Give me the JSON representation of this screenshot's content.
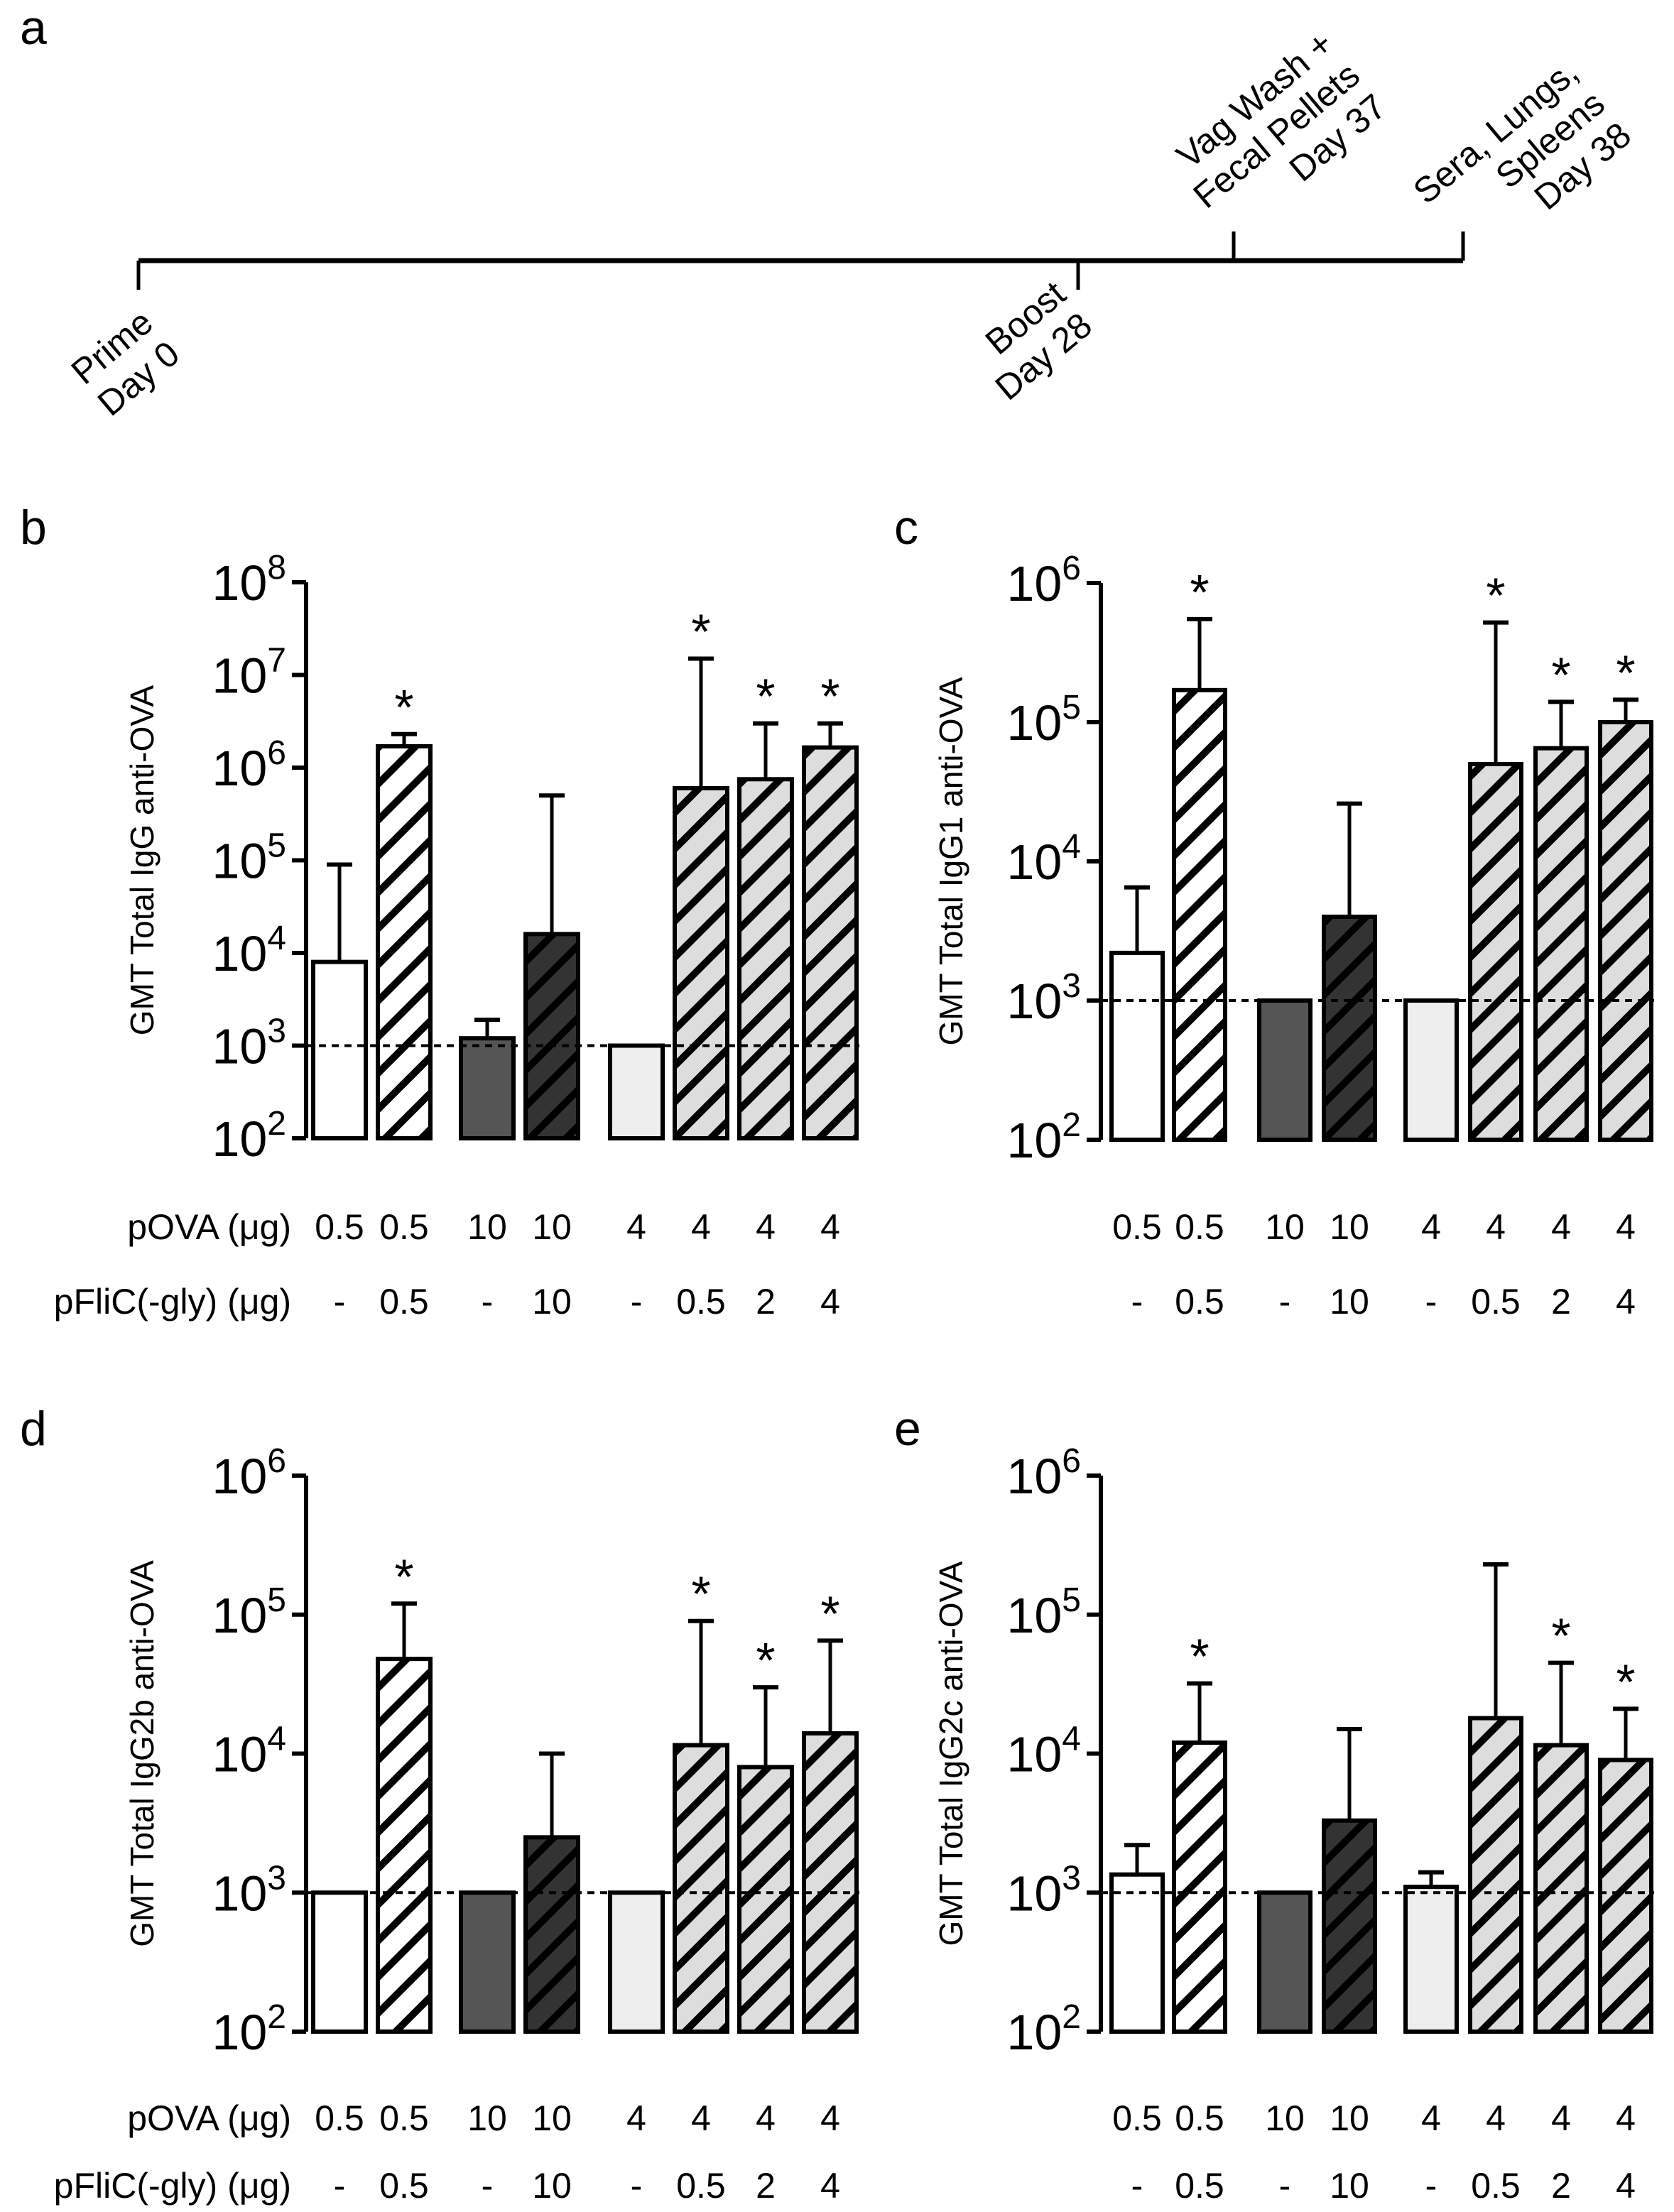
{
  "timeline": {
    "label": "a",
    "events": [
      {
        "lines": [
          "Prime",
          "Day 0"
        ],
        "day": 0
      },
      {
        "lines": [
          "Boost",
          "Day 28"
        ],
        "day": 28
      },
      {
        "lines": [
          "Vag Wash +",
          "Fecal Pellets",
          "Day 37"
        ],
        "day": 37
      },
      {
        "lines": [
          "Sera, Lungs,",
          "Spleens",
          "Day 38"
        ],
        "day": 38
      }
    ]
  },
  "row_labels": {
    "povA": "pOVA (μg)",
    "pflic": "pFliC(-gly) (μg)"
  },
  "chart_data": [
    {
      "type": "bar",
      "panel": "b",
      "ylabel": "GMT Total IgG anti-OVA",
      "yscale": "log",
      "ylim": [
        100,
        100000000
      ],
      "yticks": [
        "10^2",
        "10^3",
        "10^4",
        "10^5",
        "10^6",
        "10^7",
        "10^8"
      ],
      "detection_limit": 1000,
      "povA": [
        "0.5",
        "0.5",
        "10",
        "10",
        "4",
        "4",
        "4",
        "4"
      ],
      "pflic": [
        "-",
        "0.5",
        "-",
        "10",
        "-",
        "0.5",
        "2",
        "4"
      ],
      "show_row_labels": true,
      "values": [
        8000,
        1700000,
        1200,
        16000,
        1000,
        600000,
        750000,
        1650000
      ],
      "error_upper": [
        90000,
        2300000,
        1900,
        500000,
        null,
        15000000,
        3000000,
        3000000
      ],
      "significant": [
        false,
        true,
        false,
        false,
        false,
        true,
        true,
        true
      ]
    },
    {
      "type": "bar",
      "panel": "c",
      "ylabel": "GMT Total IgG1 anti-OVA",
      "yscale": "log",
      "ylim": [
        100,
        1000000
      ],
      "yticks": [
        "10^2",
        "10^3",
        "10^4",
        "10^5",
        "10^6"
      ],
      "detection_limit": 1000,
      "povA": [
        "0.5",
        "0.5",
        "10",
        "10",
        "4",
        "4",
        "4",
        "4"
      ],
      "pflic": [
        "-",
        "0.5",
        "-",
        "10",
        "-",
        "0.5",
        "2",
        "4"
      ],
      "show_row_labels": false,
      "values": [
        2200,
        170000,
        1000,
        4000,
        1000,
        50000,
        65000,
        100000
      ],
      "error_upper": [
        6500,
        550000,
        null,
        26000,
        null,
        520000,
        140000,
        145000
      ],
      "significant": [
        false,
        true,
        false,
        false,
        false,
        true,
        true,
        true
      ]
    },
    {
      "type": "bar",
      "panel": "d",
      "ylabel": "GMT Total IgG2b anti-OVA",
      "yscale": "log",
      "ylim": [
        100,
        1000000
      ],
      "yticks": [
        "10^2",
        "10^3",
        "10^4",
        "10^5",
        "10^6"
      ],
      "detection_limit": 1000,
      "povA": [
        "0.5",
        "0.5",
        "10",
        "10",
        "4",
        "4",
        "4",
        "4"
      ],
      "pflic": [
        "-",
        "0.5",
        "-",
        "10",
        "-",
        "0.5",
        "2",
        "4"
      ],
      "show_row_labels": true,
      "values": [
        1000,
        48000,
        1000,
        2500,
        1000,
        11500,
        8000,
        14000
      ],
      "error_upper": [
        null,
        120000,
        null,
        10000,
        null,
        90000,
        30000,
        65000
      ],
      "significant": [
        false,
        true,
        false,
        false,
        false,
        true,
        true,
        true
      ]
    },
    {
      "type": "bar",
      "panel": "e",
      "ylabel": "GMT Total IgG2c anti-OVA",
      "yscale": "log",
      "ylim": [
        100,
        1000000
      ],
      "yticks": [
        "10^2",
        "10^3",
        "10^4",
        "10^5",
        "10^6"
      ],
      "detection_limit": 1000,
      "povA": [
        "0.5",
        "0.5",
        "10",
        "10",
        "4",
        "4",
        "4",
        "4"
      ],
      "pflic": [
        "-",
        "0.5",
        "-",
        "10",
        "-",
        "0.5",
        "2",
        "4"
      ],
      "show_row_labels": false,
      "values": [
        1350,
        12000,
        1000,
        3300,
        1100,
        18000,
        11500,
        9000
      ],
      "error_upper": [
        2200,
        32000,
        null,
        15000,
        1400,
        230000,
        45000,
        21000
      ],
      "significant": [
        false,
        true,
        false,
        false,
        false,
        false,
        true,
        true
      ]
    }
  ],
  "bar_styles": [
    {
      "fill": "#ffffff",
      "hatch": false
    },
    {
      "fill": "#ffffff",
      "hatch": true
    },
    {
      "fill": "#555555",
      "hatch": false
    },
    {
      "fill": "#333333",
      "hatch": true
    },
    {
      "fill": "#eeeeee",
      "hatch": false
    },
    {
      "fill": "#dddddd",
      "hatch": true
    },
    {
      "fill": "#dddddd",
      "hatch": true
    },
    {
      "fill": "#dddddd",
      "hatch": true
    }
  ]
}
